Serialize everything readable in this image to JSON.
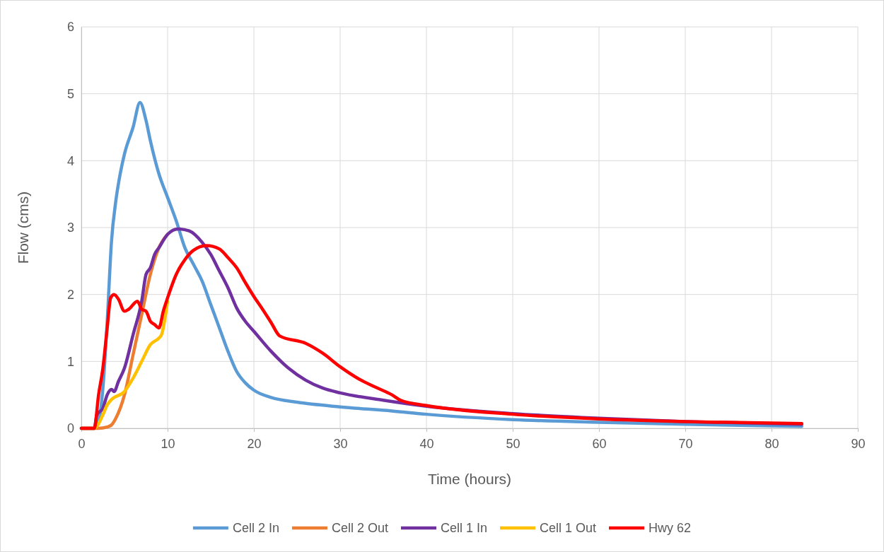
{
  "chart_data": {
    "type": "line",
    "xlabel": "Time (hours)",
    "ylabel": "Flow (cms)",
    "xlim": [
      0,
      90
    ],
    "xticks": [
      0,
      10,
      20,
      30,
      40,
      50,
      60,
      70,
      80,
      90
    ],
    "ylim": [
      0,
      6
    ],
    "yticks": [
      0,
      1,
      2,
      3,
      4,
      5,
      6
    ],
    "grid": true,
    "legend": "bottom",
    "marker": "none",
    "line_style": "solid",
    "series": [
      {
        "name": "Cell 2 In",
        "color": "#5b9bd5",
        "x": [
          0,
          1.5,
          2,
          2.5,
          3,
          3.5,
          4,
          4.5,
          5,
          6,
          6.8,
          7.5,
          8,
          9,
          10,
          11,
          12,
          13,
          14,
          15,
          16,
          17,
          18,
          19,
          20,
          22,
          25,
          30,
          36,
          40,
          50,
          60,
          70,
          83.5
        ],
        "values": [
          0,
          0,
          0.1,
          0.6,
          1.6,
          2.8,
          3.4,
          3.8,
          4.1,
          4.5,
          4.87,
          4.6,
          4.3,
          3.8,
          3.45,
          3.1,
          2.7,
          2.45,
          2.2,
          1.85,
          1.5,
          1.15,
          0.85,
          0.68,
          0.57,
          0.46,
          0.39,
          0.32,
          0.26,
          0.21,
          0.13,
          0.09,
          0.06,
          0.03
        ]
      },
      {
        "name": "Cell 2 Out",
        "color": "#ed7d31",
        "x": [
          0,
          2,
          3,
          3.5,
          4,
          5,
          6,
          7,
          8,
          9,
          10
        ],
        "values": [
          0,
          0,
          0.02,
          0.05,
          0.15,
          0.5,
          1.1,
          1.7,
          2.3,
          2.7,
          2.9
        ]
      },
      {
        "name": "Cell 1 In",
        "color": "#7030a0",
        "x": [
          0,
          1.5,
          1.8,
          2.5,
          3,
          3.5,
          3.8,
          4.3,
          5,
          6,
          7,
          7.5,
          8,
          8.5,
          9,
          10,
          11.2,
          12.5,
          14,
          15,
          16,
          17,
          18,
          19,
          20,
          22,
          24,
          26,
          28,
          30,
          35,
          40,
          50,
          60,
          70,
          83.5
        ],
        "values": [
          0,
          0,
          0.2,
          0.3,
          0.5,
          0.58,
          0.55,
          0.7,
          0.9,
          1.4,
          1.9,
          2.3,
          2.4,
          2.6,
          2.7,
          2.9,
          2.98,
          2.95,
          2.78,
          2.6,
          2.35,
          2.1,
          1.8,
          1.6,
          1.45,
          1.15,
          0.9,
          0.72,
          0.6,
          0.53,
          0.42,
          0.33,
          0.22,
          0.15,
          0.1,
          0.06
        ]
      },
      {
        "name": "Cell 1 Out",
        "color": "#ffc000",
        "x": [
          0,
          1.5,
          2.5,
          3,
          3.5,
          5,
          6,
          7,
          8,
          9,
          9.3,
          10
        ],
        "values": [
          0,
          0,
          0.2,
          0.35,
          0.43,
          0.55,
          0.75,
          1.0,
          1.25,
          1.35,
          1.4,
          1.9
        ]
      },
      {
        "name": "Hwy 62",
        "color": "#ff0000",
        "x": [
          0,
          1.5,
          2,
          2.5,
          3,
          3.4,
          3.8,
          4.3,
          5,
          5.5,
          6.5,
          7,
          7.5,
          8,
          8.5,
          9,
          9.5,
          10,
          11,
          12,
          13,
          14.5,
          16,
          17,
          18,
          19,
          20,
          21,
          22,
          23,
          26,
          28,
          30,
          32,
          34,
          36,
          37,
          40,
          50,
          60,
          70,
          83.5
        ],
        "values": [
          0,
          0,
          0.5,
          0.9,
          1.5,
          1.95,
          2.0,
          1.93,
          1.75,
          1.78,
          1.9,
          1.78,
          1.75,
          1.6,
          1.55,
          1.5,
          1.75,
          1.95,
          2.3,
          2.52,
          2.66,
          2.73,
          2.68,
          2.55,
          2.4,
          2.18,
          1.97,
          1.78,
          1.58,
          1.38,
          1.27,
          1.12,
          0.92,
          0.75,
          0.62,
          0.5,
          0.42,
          0.34,
          0.21,
          0.14,
          0.1,
          0.07
        ]
      }
    ]
  }
}
